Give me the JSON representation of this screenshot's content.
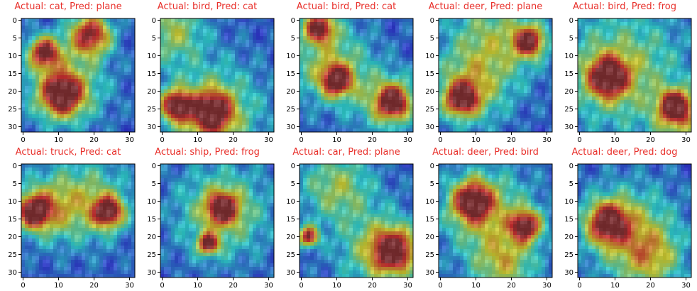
{
  "colors": {
    "title": "#e8302b",
    "frame": "#000000"
  },
  "chart_data": {
    "type": "heatmap",
    "image_size": 32,
    "colormap": "jet-overlay",
    "x_ticks": [
      0,
      10,
      20,
      30
    ],
    "y_ticks": [
      0,
      5,
      10,
      15,
      20,
      25,
      30
    ],
    "xlim": [
      0,
      31
    ],
    "ylim": [
      31,
      0
    ],
    "panels": [
      {
        "title": "Actual: cat, Pred: plane",
        "actual": "cat",
        "pred": "plane",
        "hot": [
          [
            11,
            21,
            4
          ],
          [
            19,
            4,
            4
          ],
          [
            6,
            9,
            3
          ]
        ],
        "warm": [
          [
            12,
            18,
            8
          ]
        ]
      },
      {
        "title": "Actual: bird, Pred: cat",
        "actual": "bird",
        "pred": "cat",
        "hot": [
          [
            14,
            26,
            4
          ],
          [
            4,
            24,
            3
          ]
        ],
        "warm": [
          [
            14,
            26,
            10
          ],
          [
            3,
            3,
            6
          ]
        ]
      },
      {
        "title": "Actual: bird, Pred: cat",
        "actual": "bird",
        "pred": "cat",
        "hot": [
          [
            5,
            2,
            3
          ],
          [
            26,
            23,
            3
          ],
          [
            10,
            17,
            3
          ]
        ],
        "warm": [
          [
            8,
            12,
            8
          ],
          [
            24,
            23,
            6
          ]
        ]
      },
      {
        "title": "Actual: deer, Pred: plane",
        "actual": "deer",
        "pred": "plane",
        "hot": [
          [
            25,
            6,
            3
          ],
          [
            6,
            22,
            3
          ]
        ],
        "warm": [
          [
            15,
            6,
            9
          ],
          [
            8,
            20,
            7
          ]
        ]
      },
      {
        "title": "Actual: bird, Pred: frog",
        "actual": "bird",
        "pred": "frog",
        "hot": [
          [
            27,
            24,
            3
          ],
          [
            8,
            16,
            4
          ]
        ],
        "warm": [
          [
            12,
            14,
            12
          ],
          [
            28,
            28,
            5
          ]
        ]
      },
      {
        "title": "Actual: truck, Pred: cat",
        "actual": "truck",
        "pred": "cat",
        "hot": [
          [
            3,
            13,
            3
          ],
          [
            24,
            13,
            3
          ]
        ],
        "warm": [
          [
            18,
            10,
            8
          ],
          [
            6,
            12,
            6
          ]
        ]
      },
      {
        "title": "Actual: ship, Pred: frog",
        "actual": "ship",
        "pred": "frog",
        "hot": [
          [
            17,
            12,
            3
          ],
          [
            13,
            22,
            2
          ]
        ],
        "warm": [
          [
            17,
            13,
            9
          ]
        ]
      },
      {
        "title": "Actual: car, Pred: plane",
        "actual": "car",
        "pred": "plane",
        "hot": [
          [
            26,
            24,
            4
          ],
          [
            2,
            20,
            2
          ]
        ],
        "warm": [
          [
            22,
            24,
            8
          ],
          [
            10,
            6,
            7
          ]
        ]
      },
      {
        "title": "Actual: deer, Pred: bird",
        "actual": "deer",
        "pred": "bird",
        "hot": [
          [
            9,
            10,
            4
          ],
          [
            24,
            17,
            3
          ]
        ],
        "warm": [
          [
            14,
            14,
            9
          ],
          [
            18,
            28,
            6
          ]
        ]
      },
      {
        "title": "Actual: deer, Pred: dog",
        "actual": "deer",
        "pred": "dog",
        "hot": [
          [
            8,
            16,
            4
          ]
        ],
        "warm": [
          [
            14,
            18,
            9
          ],
          [
            20,
            26,
            6
          ]
        ]
      }
    ]
  }
}
